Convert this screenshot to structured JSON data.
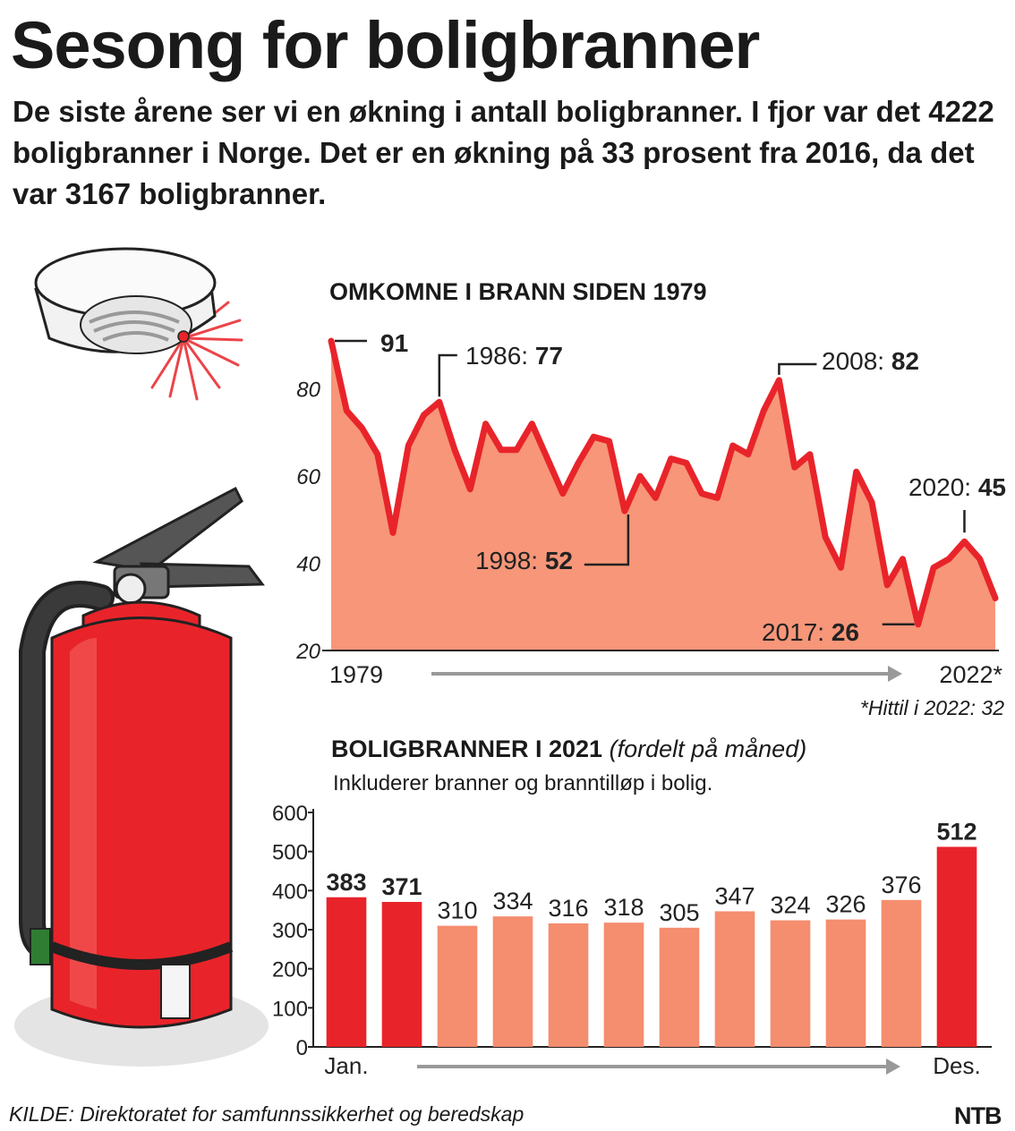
{
  "title": "Sesong for boligbranner",
  "lead": "De siste årene ser vi en økning i antall boligbranner. I fjor var det 4222 boligbranner i Norge. Det er en økning på 33 prosent fra 2016, da det var 3167 boligbranner.",
  "source": "KILDE: Direktoratet for samfunnssikkerhet og beredskap",
  "logo": "NTB",
  "colors": {
    "line": "#e8242a",
    "area": "#f79679",
    "bar_highlight": "#e8242a",
    "bar_regular": "#f58d6f",
    "arrow": "#999999"
  },
  "illustrations": [
    "smoke-detector",
    "fire-extinguisher"
  ],
  "chart_data": [
    {
      "type": "area",
      "title": "OMKOMNE I BRANN SIDEN 1979",
      "x": [
        1979,
        1980,
        1981,
        1982,
        1983,
        1984,
        1985,
        1986,
        1987,
        1988,
        1989,
        1990,
        1991,
        1992,
        1993,
        1994,
        1995,
        1996,
        1997,
        1998,
        1999,
        2000,
        2001,
        2002,
        2003,
        2004,
        2005,
        2006,
        2007,
        2008,
        2009,
        2010,
        2011,
        2012,
        2013,
        2014,
        2015,
        2016,
        2017,
        2018,
        2019,
        2020,
        2021,
        2022
      ],
      "values": [
        91,
        75,
        71,
        65,
        47,
        67,
        74,
        77,
        66,
        57,
        72,
        66,
        66,
        72,
        64,
        56,
        63,
        69,
        68,
        52,
        60,
        55,
        64,
        63,
        56,
        55,
        67,
        65,
        75,
        82,
        62,
        65,
        46,
        39,
        61,
        54,
        35,
        41,
        26,
        39,
        41,
        45,
        41,
        32
      ],
      "ylim": [
        20,
        91
      ],
      "yticks": [
        20,
        40,
        60,
        80
      ],
      "x_labels": [
        "1979",
        "2022*"
      ],
      "annotations": [
        {
          "year": 1979,
          "label": "",
          "value": "91"
        },
        {
          "year": 1986,
          "label": "1986: ",
          "value": "77"
        },
        {
          "year": 1998,
          "label": "1998: ",
          "value": "52"
        },
        {
          "year": 2008,
          "label": "2008: ",
          "value": "82"
        },
        {
          "year": 2017,
          "label": "2017: ",
          "value": "26"
        },
        {
          "year": 2020,
          "label": "2020: ",
          "value": "45"
        }
      ],
      "footnote": "*Hittil i 2022: 32"
    },
    {
      "type": "bar",
      "title": "BOLIGBRANNER I 2021",
      "title_note": "(fordelt på måned)",
      "subtitle": "Inkluderer branner og branntilløp i bolig.",
      "categories": [
        "Jan",
        "Feb",
        "Mar",
        "Apr",
        "Mai",
        "Jun",
        "Jul",
        "Aug",
        "Sep",
        "Okt",
        "Nov",
        "Des"
      ],
      "values": [
        383,
        371,
        310,
        334,
        316,
        318,
        305,
        347,
        324,
        326,
        376,
        512
      ],
      "highlight": [
        0,
        1,
        11
      ],
      "ylim": [
        0,
        600
      ],
      "yticks": [
        0,
        100,
        200,
        300,
        400,
        500,
        600
      ],
      "x_labels": [
        "Jan.",
        "Des."
      ]
    }
  ]
}
